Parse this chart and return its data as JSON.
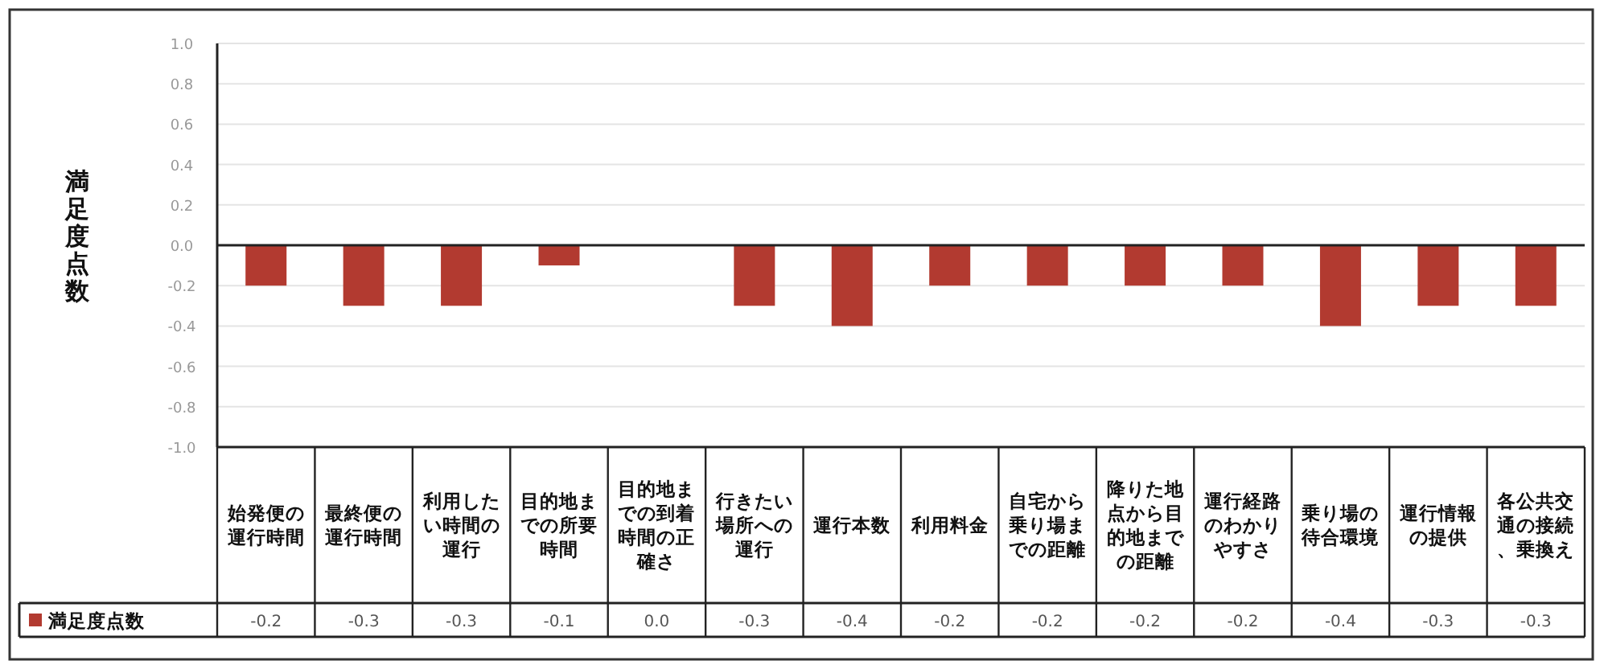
{
  "chart_data": {
    "type": "bar",
    "ylabel": "満足度点数",
    "categories": [
      "始発便の運行時間",
      "最終便の運行時間",
      "利用したい時間の運行",
      "目的地までの所要時間",
      "目的地までの到着時間の正確さ",
      "行きたい場所への運行",
      "運行本数",
      "利用料金",
      "自宅から乗り場までの距離",
      "降りた地点から目的地までの距離",
      "運行経路のわかりやすさ",
      "乗り場の待合環境",
      "運行情報の提供",
      "各公共交通の接続、乗換え"
    ],
    "series": [
      {
        "name": "満足度点数",
        "color": "#b23a30",
        "values": [
          -0.2,
          -0.3,
          -0.3,
          -0.1,
          0.0,
          -0.3,
          -0.4,
          -0.2,
          -0.2,
          -0.2,
          -0.2,
          -0.4,
          -0.3,
          -0.3
        ],
        "value_labels": [
          "-0.2",
          "-0.3",
          "-0.3",
          "-0.1",
          "0.0",
          "-0.3",
          "-0.4",
          "-0.2",
          "-0.2",
          "-0.2",
          "-0.2",
          "-0.4",
          "-0.3",
          "-0.3"
        ]
      }
    ],
    "ylim": [
      -1.0,
      1.0
    ],
    "yticks": [
      {
        "value": -1.0,
        "label": "-1.0"
      },
      {
        "value": -0.8,
        "label": "-0.8"
      },
      {
        "value": -0.6,
        "label": "-0.6"
      },
      {
        "value": -0.4,
        "label": "-0.4"
      },
      {
        "value": -0.2,
        "label": "-0.2"
      },
      {
        "value": 0.0,
        "label": "0.0"
      },
      {
        "value": 0.2,
        "label": "0.2"
      },
      {
        "value": 0.4,
        "label": "0.4"
      },
      {
        "value": 0.6,
        "label": "0.6"
      },
      {
        "value": 0.8,
        "label": "0.8"
      },
      {
        "value": 1.0,
        "label": "1.0"
      }
    ],
    "grid": "y",
    "legend": "bottom"
  }
}
